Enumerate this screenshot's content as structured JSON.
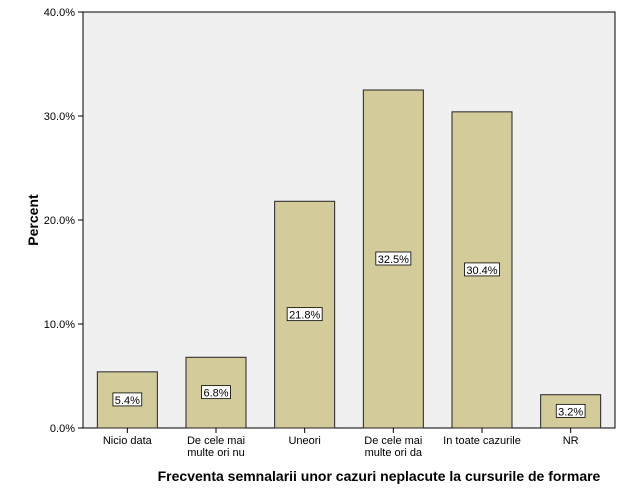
{
  "colors": {
    "plot_background": "#f0f0f0",
    "bar_fill": "#d4cb9a",
    "bar_stroke": "#222222"
  },
  "chart_data": {
    "type": "bar",
    "categories": [
      [
        "Nicio data"
      ],
      [
        "De cele mai",
        "multe ori nu"
      ],
      [
        "Uneori"
      ],
      [
        "De cele mai",
        "multe ori da"
      ],
      [
        "In toate cazurile"
      ],
      [
        "NR"
      ]
    ],
    "values": [
      5.4,
      6.8,
      21.8,
      32.5,
      30.4,
      3.2
    ],
    "data_labels": [
      "5.4%",
      "6.8%",
      "21.8%",
      "32.5%",
      "30.4%",
      "3.2%"
    ],
    "xlabel": "Frecventa semnalarii unor cazuri neplacute la cursurile de formare",
    "ylabel": "Percent",
    "ylim": [
      0,
      40
    ],
    "yticks": [
      0,
      10,
      20,
      30,
      40
    ],
    "ytick_labels": [
      "0.0%",
      "10.0%",
      "20.0%",
      "30.0%",
      "40.0%"
    ],
    "grid": false,
    "legend": "none"
  }
}
